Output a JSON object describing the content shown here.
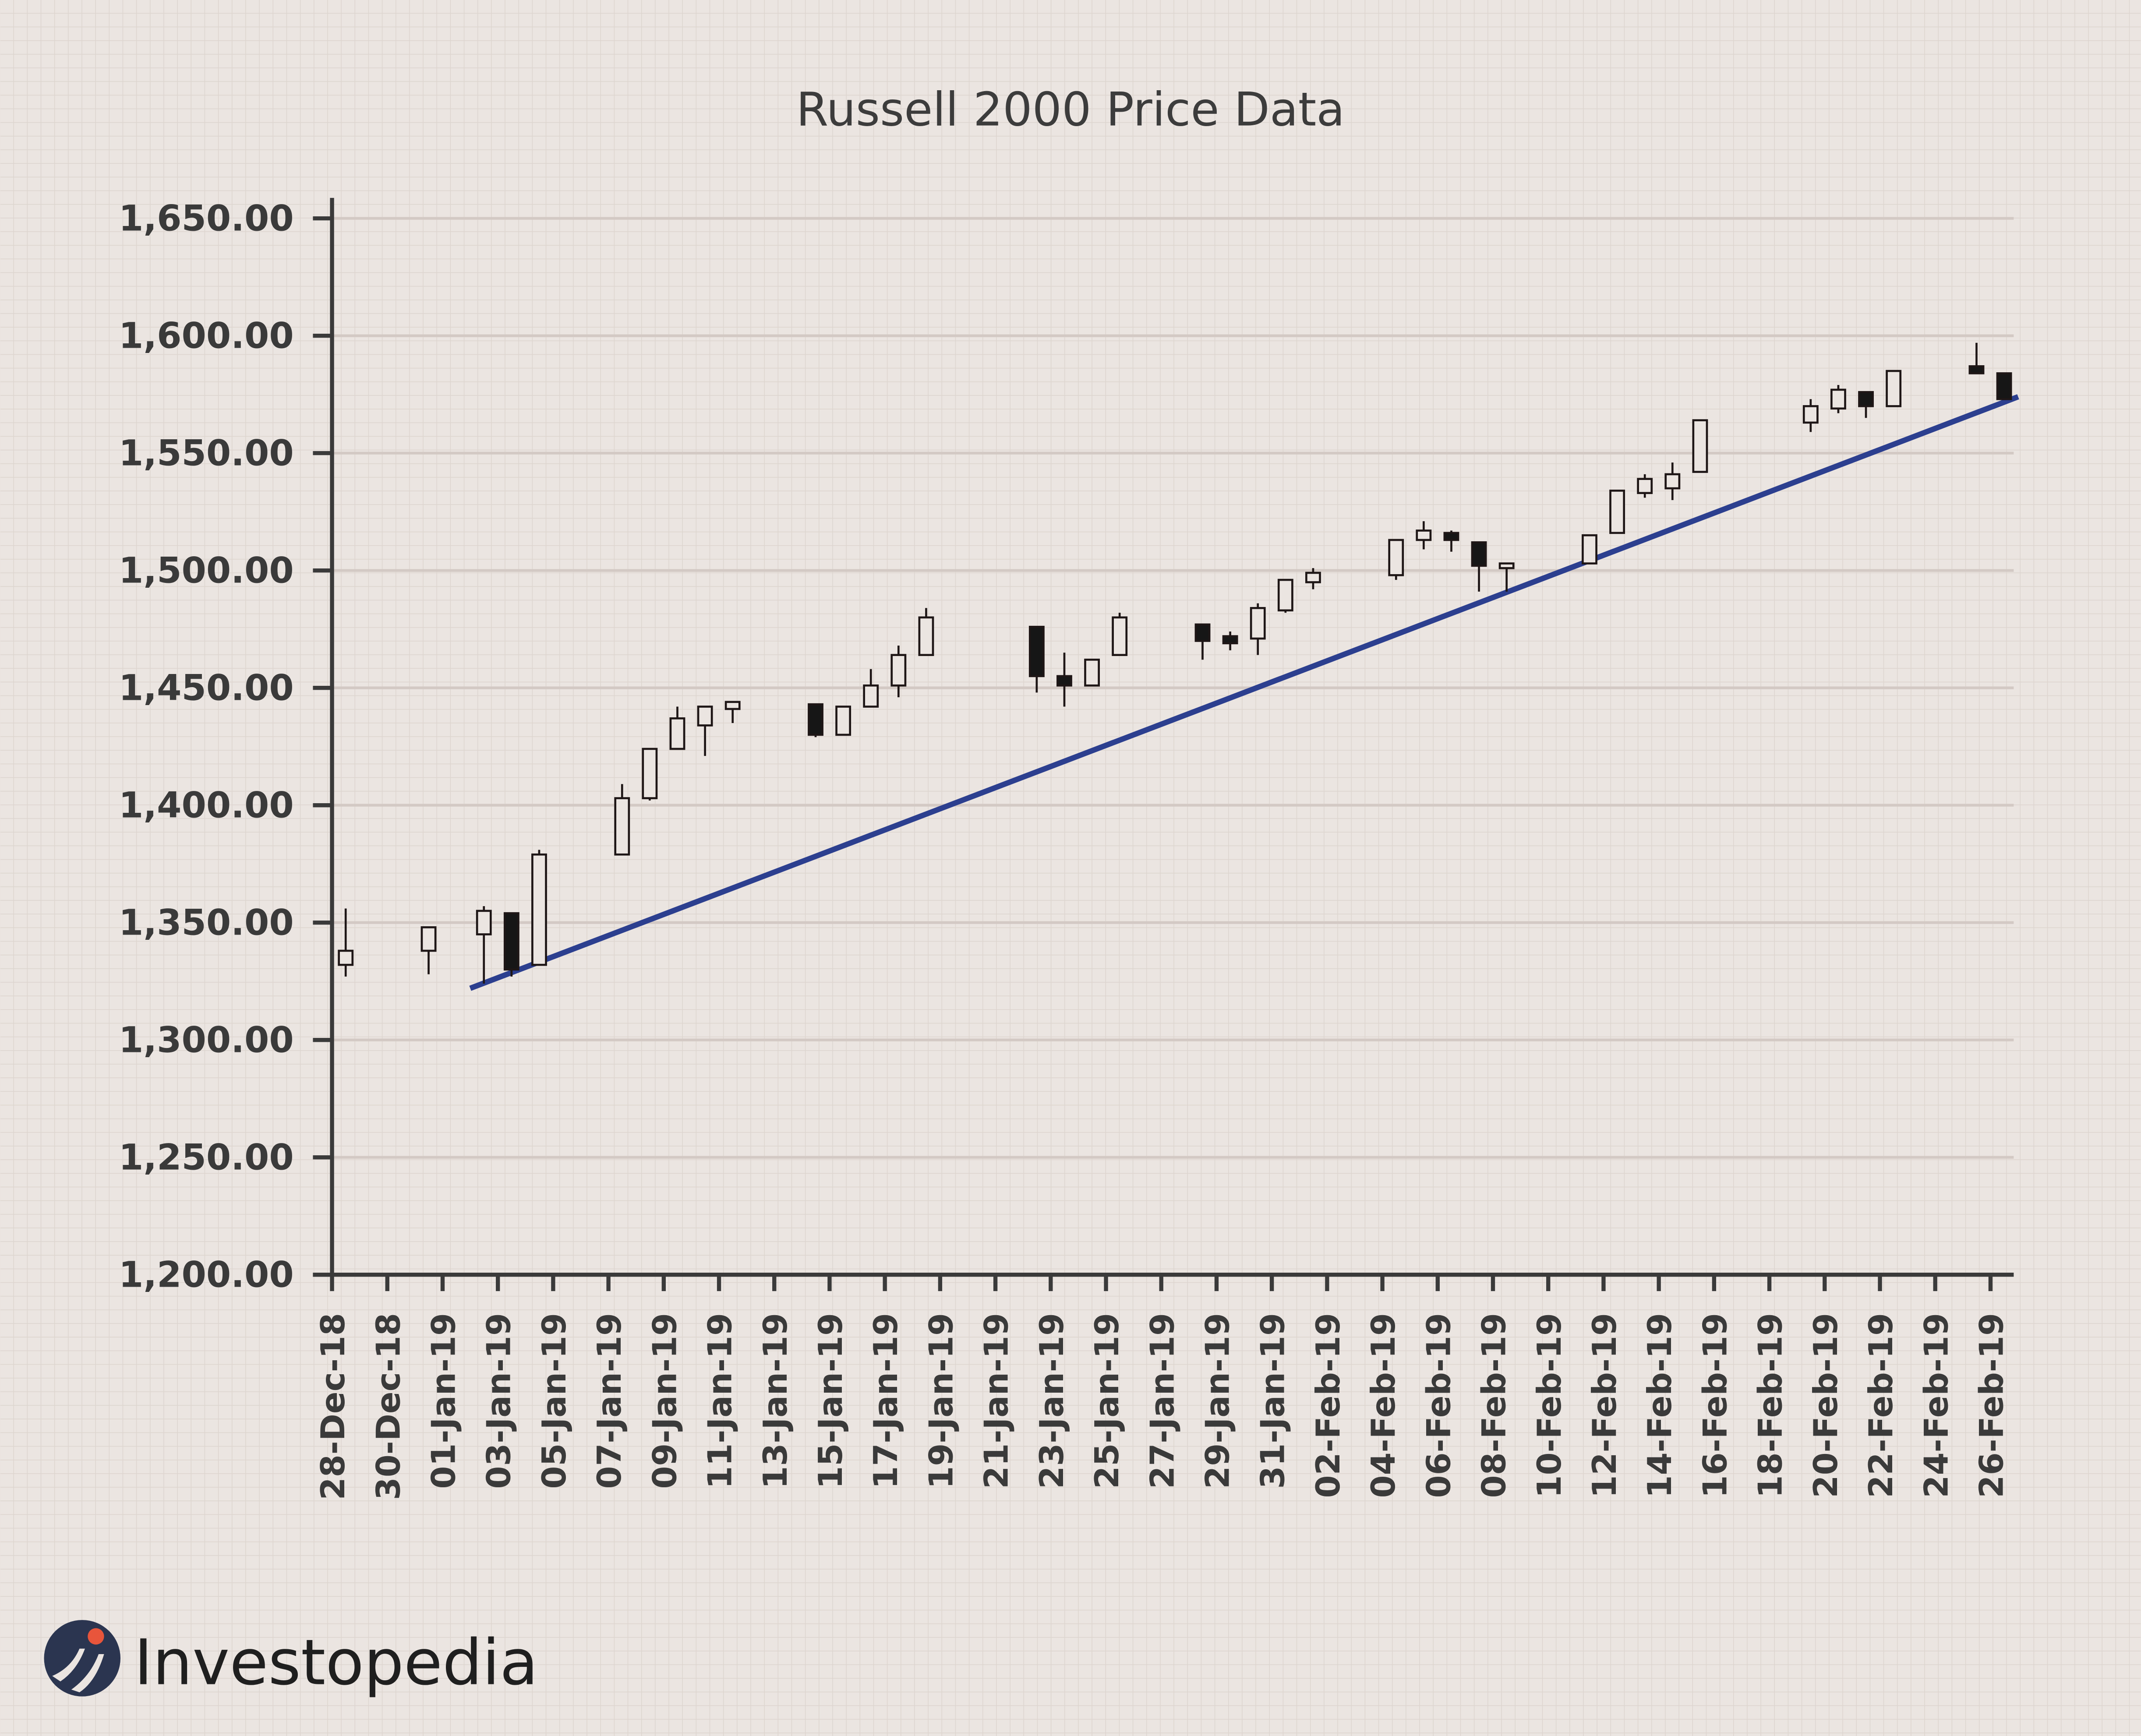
{
  "chart_data": {
    "type": "candlestick",
    "title": "Russell 2000 Price Data",
    "xlabel": "",
    "ylabel": "",
    "ylim": [
      1200,
      1650
    ],
    "y_ticks": [
      "1,200.00",
      "1,250.00",
      "1,300.00",
      "1,350.00",
      "1,400.00",
      "1,450.00",
      "1,500.00",
      "1,550.00",
      "1,600.00",
      "1,650.00"
    ],
    "x_ticks": [
      "28-Dec-18",
      "30-Dec-18",
      "01-Jan-19",
      "03-Jan-19",
      "05-Jan-19",
      "07-Jan-19",
      "09-Jan-19",
      "11-Jan-19",
      "13-Jan-19",
      "15-Jan-19",
      "17-Jan-19",
      "19-Jan-19",
      "21-Jan-19",
      "23-Jan-19",
      "25-Jan-19",
      "27-Jan-19",
      "29-Jan-19",
      "31-Jan-19",
      "02-Feb-19",
      "04-Feb-19",
      "06-Feb-19",
      "08-Feb-19",
      "10-Feb-19",
      "12-Feb-19",
      "14-Feb-19",
      "16-Feb-19",
      "18-Feb-19",
      "20-Feb-19",
      "22-Feb-19",
      "24-Feb-19",
      "26-Feb-19"
    ],
    "grid": true,
    "colors": {
      "up_fill": "#ebe5e1",
      "down_fill": "#161616",
      "wick": "#1e1616",
      "trendline": "#2c3f8f",
      "axis": "#3a3a3a",
      "background": "#ebe5e1"
    },
    "candles": [
      {
        "date": "28-Dec-18",
        "open": 1332,
        "high": 1356,
        "low": 1327,
        "close": 1338
      },
      {
        "date": "31-Dec-18",
        "open": 1338,
        "high": 1348,
        "low": 1328,
        "close": 1348
      },
      {
        "date": "02-Jan-19",
        "open": 1345,
        "high": 1357,
        "low": 1324,
        "close": 1355
      },
      {
        "date": "03-Jan-19",
        "open": 1354,
        "high": 1354,
        "low": 1327,
        "close": 1330
      },
      {
        "date": "04-Jan-19",
        "open": 1332,
        "high": 1381,
        "low": 1332,
        "close": 1379
      },
      {
        "date": "07-Jan-19",
        "open": 1379,
        "high": 1409,
        "low": 1379,
        "close": 1403
      },
      {
        "date": "08-Jan-19",
        "open": 1403,
        "high": 1424,
        "low": 1402,
        "close": 1424
      },
      {
        "date": "09-Jan-19",
        "open": 1424,
        "high": 1442,
        "low": 1424,
        "close": 1437
      },
      {
        "date": "10-Jan-19",
        "open": 1434,
        "high": 1442,
        "low": 1421,
        "close": 1442
      },
      {
        "date": "11-Jan-19",
        "open": 1441,
        "high": 1444,
        "low": 1435,
        "close": 1444
      },
      {
        "date": "14-Jan-19",
        "open": 1443,
        "high": 1443,
        "low": 1429,
        "close": 1430
      },
      {
        "date": "15-Jan-19",
        "open": 1430,
        "high": 1442,
        "low": 1430,
        "close": 1442
      },
      {
        "date": "16-Jan-19",
        "open": 1442,
        "high": 1458,
        "low": 1442,
        "close": 1451
      },
      {
        "date": "17-Jan-19",
        "open": 1451,
        "high": 1468,
        "low": 1446,
        "close": 1464
      },
      {
        "date": "18-Jan-19",
        "open": 1464,
        "high": 1484,
        "low": 1464,
        "close": 1480
      },
      {
        "date": "22-Jan-19",
        "open": 1476,
        "high": 1476,
        "low": 1448,
        "close": 1455
      },
      {
        "date": "23-Jan-19",
        "open": 1455,
        "high": 1465,
        "low": 1442,
        "close": 1451
      },
      {
        "date": "24-Jan-19",
        "open": 1451,
        "high": 1462,
        "low": 1451,
        "close": 1462
      },
      {
        "date": "25-Jan-19",
        "open": 1464,
        "high": 1482,
        "low": 1464,
        "close": 1480
      },
      {
        "date": "28-Jan-19",
        "open": 1477,
        "high": 1477,
        "low": 1462,
        "close": 1470
      },
      {
        "date": "29-Jan-19",
        "open": 1472,
        "high": 1474,
        "low": 1466,
        "close": 1469
      },
      {
        "date": "30-Jan-19",
        "open": 1471,
        "high": 1486,
        "low": 1464,
        "close": 1484
      },
      {
        "date": "31-Jan-19",
        "open": 1483,
        "high": 1496,
        "low": 1482,
        "close": 1496
      },
      {
        "date": "01-Feb-19",
        "open": 1495,
        "high": 1501,
        "low": 1492,
        "close": 1499
      },
      {
        "date": "04-Feb-19",
        "open": 1498,
        "high": 1513,
        "low": 1496,
        "close": 1513
      },
      {
        "date": "05-Feb-19",
        "open": 1513,
        "high": 1521,
        "low": 1509,
        "close": 1517
      },
      {
        "date": "06-Feb-19",
        "open": 1516,
        "high": 1517,
        "low": 1508,
        "close": 1513
      },
      {
        "date": "07-Feb-19",
        "open": 1512,
        "high": 1512,
        "low": 1491,
        "close": 1502
      },
      {
        "date": "08-Feb-19",
        "open": 1501,
        "high": 1503,
        "low": 1491,
        "close": 1503
      },
      {
        "date": "11-Feb-19",
        "open": 1503,
        "high": 1515,
        "low": 1503,
        "close": 1515
      },
      {
        "date": "12-Feb-19",
        "open": 1516,
        "high": 1534,
        "low": 1516,
        "close": 1534
      },
      {
        "date": "13-Feb-19",
        "open": 1533,
        "high": 1541,
        "low": 1531,
        "close": 1539
      },
      {
        "date": "14-Feb-19",
        "open": 1535,
        "high": 1546,
        "low": 1530,
        "close": 1541
      },
      {
        "date": "15-Feb-19",
        "open": 1542,
        "high": 1564,
        "low": 1542,
        "close": 1564
      },
      {
        "date": "19-Feb-19",
        "open": 1563,
        "high": 1573,
        "low": 1559,
        "close": 1570
      },
      {
        "date": "20-Feb-19",
        "open": 1569,
        "high": 1579,
        "low": 1567,
        "close": 1577
      },
      {
        "date": "21-Feb-19",
        "open": 1576,
        "high": 1576,
        "low": 1565,
        "close": 1570
      },
      {
        "date": "22-Feb-19",
        "open": 1570,
        "high": 1585,
        "low": 1570,
        "close": 1585
      },
      {
        "date": "25-Feb-19",
        "open": 1587,
        "high": 1597,
        "low": 1584,
        "close": 1584
      },
      {
        "date": "26-Feb-19",
        "open": 1584,
        "high": 1584,
        "low": 1573,
        "close": 1573
      }
    ],
    "trendline": {
      "start": {
        "date": "02-Jan-19",
        "value": 1322
      },
      "end": {
        "date": "27-Feb-19",
        "value": 1574
      }
    }
  },
  "brand": {
    "logo_text": "Investopedia",
    "logo_icon": "investopedia-logo-icon"
  }
}
